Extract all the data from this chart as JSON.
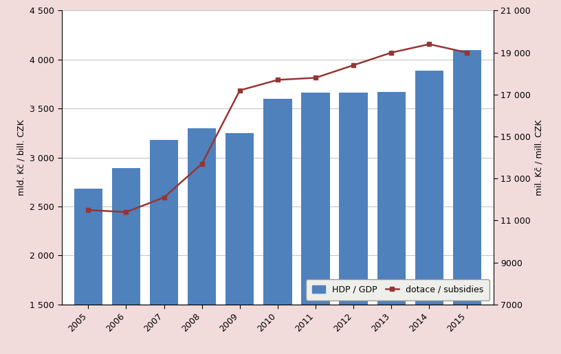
{
  "years": [
    2005,
    2006,
    2007,
    2008,
    2009,
    2010,
    2011,
    2012,
    2013,
    2014,
    2015
  ],
  "gdp": [
    2680,
    2890,
    3180,
    3300,
    3250,
    3600,
    3660,
    3665,
    3670,
    3890,
    4100
  ],
  "subsidies": [
    11500,
    11400,
    12100,
    13700,
    17200,
    17700,
    17800,
    18400,
    19000,
    19400,
    19000
  ],
  "bar_color": "#4f81bd",
  "line_color": "#943634",
  "background_color": "#f2dcdb",
  "plot_background": "#ffffff",
  "left_ylim": [
    1500,
    4500
  ],
  "right_ylim": [
    7000,
    21000
  ],
  "left_yticks": [
    1500,
    2000,
    2500,
    3000,
    3500,
    4000,
    4500
  ],
  "right_yticks": [
    7000,
    9000,
    11000,
    13000,
    15000,
    17000,
    19000,
    21000
  ],
  "left_ylabel": "mld. Kč / bill. CZK",
  "right_ylabel": "mil. Kč / mill. CZK",
  "legend_gdp": "HDP / GDP",
  "legend_subsidies": "dotace / subsidies",
  "marker": "s",
  "marker_size": 5,
  "line_width": 1.8,
  "bar_width": 0.75
}
